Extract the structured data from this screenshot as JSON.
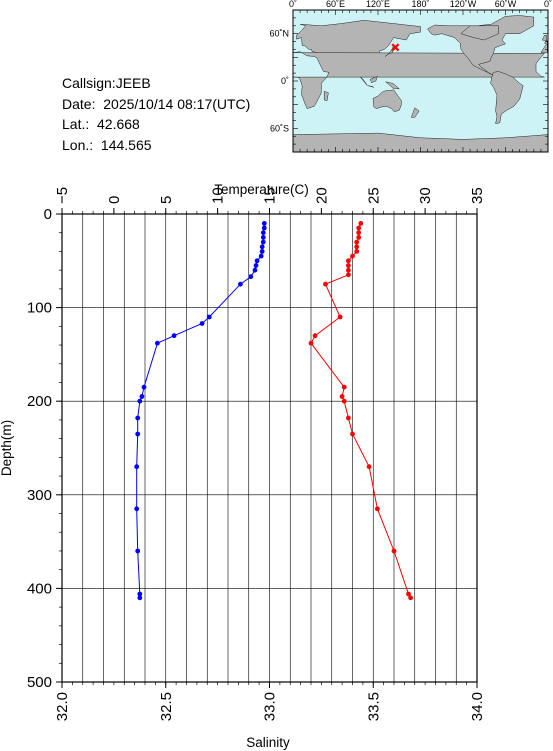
{
  "info": {
    "callsign": "Callsign:JEEB",
    "date": "Date:  2025/10/14 08:17(UTC)",
    "lat": "Lat.:  42.668",
    "lon": "Lon.:  144.565"
  },
  "map": {
    "top_labels": [
      "0˚",
      "60˚E",
      "120˚E",
      "180˚",
      "120˚W",
      "60˚W",
      "0˚"
    ],
    "left_labels": [
      "60˚N",
      "0˚",
      "60˚S"
    ],
    "ocean_color": "#cdf3f7",
    "land_color": "#b4b4b4",
    "marker_color": "#ff0000",
    "marker": {
      "lon": 144.565,
      "lat": 42.668
    }
  },
  "chart_data": {
    "type": "line",
    "y_axis": {
      "label": "Depth(m)",
      "range": [
        0,
        500
      ],
      "ticks": [
        "0",
        "100",
        "200",
        "300",
        "400",
        "500"
      ],
      "inverted": true
    },
    "top_axis": {
      "label": "Temperature(C)",
      "range": [
        -5,
        35
      ],
      "ticks": [
        "−5",
        "0",
        "5",
        "10",
        "15",
        "20",
        "25",
        "30",
        "35"
      ]
    },
    "bottom_axis": {
      "label": "Salinity",
      "range": [
        32.0,
        34.0
      ],
      "ticks": [
        "32.0",
        "32.5",
        "33.0",
        "33.5",
        "34.0"
      ]
    },
    "grid": true,
    "series": [
      {
        "axis": "temperature",
        "color": "#0000ff",
        "points": [
          [
            14.5,
            10
          ],
          [
            14.5,
            15
          ],
          [
            14.4,
            20
          ],
          [
            14.4,
            25
          ],
          [
            14.4,
            30
          ],
          [
            14.3,
            35
          ],
          [
            14.3,
            40
          ],
          [
            14.2,
            45
          ],
          [
            13.8,
            50
          ],
          [
            13.7,
            55
          ],
          [
            13.6,
            60
          ],
          [
            13.2,
            67
          ],
          [
            12.2,
            75
          ],
          [
            9.2,
            110
          ],
          [
            8.5,
            117
          ],
          [
            5.8,
            130
          ],
          [
            4.2,
            138
          ],
          [
            2.9,
            185
          ],
          [
            2.7,
            195
          ],
          [
            2.5,
            200
          ],
          [
            2.3,
            218
          ],
          [
            2.3,
            235
          ],
          [
            2.2,
            270
          ],
          [
            2.2,
            315
          ],
          [
            2.3,
            360
          ],
          [
            2.5,
            406
          ],
          [
            2.5,
            410
          ]
        ]
      },
      {
        "axis": "salinity",
        "color": "#ff0000",
        "points": [
          [
            33.44,
            10
          ],
          [
            33.43,
            15
          ],
          [
            33.43,
            20
          ],
          [
            33.43,
            25
          ],
          [
            33.42,
            30
          ],
          [
            33.42,
            35
          ],
          [
            33.42,
            40
          ],
          [
            33.4,
            45
          ],
          [
            33.38,
            50
          ],
          [
            33.38,
            55
          ],
          [
            33.38,
            60
          ],
          [
            33.38,
            65
          ],
          [
            33.27,
            75
          ],
          [
            33.34,
            110
          ],
          [
            33.22,
            130
          ],
          [
            33.2,
            138
          ],
          [
            33.36,
            185
          ],
          [
            33.35,
            195
          ],
          [
            33.36,
            200
          ],
          [
            33.38,
            218
          ],
          [
            33.4,
            235
          ],
          [
            33.48,
            270
          ],
          [
            33.52,
            315
          ],
          [
            33.6,
            360
          ],
          [
            33.67,
            406
          ],
          [
            33.68,
            410
          ]
        ]
      }
    ]
  }
}
